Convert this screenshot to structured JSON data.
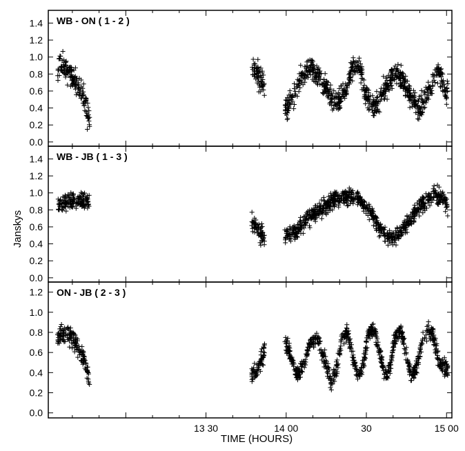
{
  "chart_data": {
    "type": "scatter",
    "marker": "+",
    "marker_color": "#000000",
    "xlabel": "TIME (HOURS)",
    "ylabel": "Janskys",
    "x_units": "minutes after 13:00",
    "xlim": [
      -29,
      122
    ],
    "xticks": [
      {
        "value": 30,
        "label": "13 30"
      },
      {
        "value": 60,
        "label": "14 00"
      },
      {
        "value": 90,
        "label": "30"
      },
      {
        "value": 120,
        "label": "15 00"
      }
    ],
    "grid": false,
    "panels": [
      {
        "title": "WB - ON ( 1 - 2 )",
        "ylim": [
          -0.05,
          1.55
        ],
        "yticks": [
          "0.0",
          "0.2",
          "0.4",
          "0.6",
          "0.8",
          "1.0",
          "1.2",
          "1.4"
        ],
        "ytick_values": [
          0.0,
          0.2,
          0.4,
          0.6,
          0.8,
          1.0,
          1.2,
          1.4
        ],
        "segments": [
          {
            "x_range": [
              -25.5,
              -13.5
            ],
            "anchors": [
              [
                -25.5,
                0.86
              ],
              [
                -23.5,
                0.92
              ],
              [
                -21.5,
                0.84
              ],
              [
                -19.5,
                0.75
              ],
              [
                -17.5,
                0.62
              ],
              [
                -15.5,
                0.5
              ],
              [
                -13.5,
                0.22
              ]
            ],
            "scatter": 0.12,
            "n": 150
          },
          {
            "x_range": [
              47,
              52
            ],
            "anchors": [
              [
                47,
                0.88
              ],
              [
                49,
                0.8
              ],
              [
                52,
                0.68
              ]
            ],
            "scatter": 0.13,
            "n": 65
          },
          {
            "x_range": [
              59.5,
              120.5
            ],
            "anchors": [
              [
                59.5,
                0.4
              ],
              [
                62,
                0.5
              ],
              [
                66,
                0.78
              ],
              [
                69,
                0.86
              ],
              [
                72,
                0.8
              ],
              [
                76,
                0.6
              ],
              [
                79,
                0.45
              ],
              [
                82,
                0.58
              ],
              [
                85,
                0.9
              ],
              [
                87,
                0.92
              ],
              [
                90,
                0.55
              ],
              [
                92,
                0.4
              ],
              [
                95,
                0.48
              ],
              [
                97,
                0.65
              ],
              [
                101,
                0.82
              ],
              [
                104,
                0.7
              ],
              [
                108,
                0.45
              ],
              [
                110,
                0.38
              ],
              [
                113,
                0.58
              ],
              [
                117,
                0.82
              ],
              [
                120,
                0.58
              ]
            ],
            "scatter": 0.12,
            "n": 760
          }
        ]
      },
      {
        "title": "WB - JB ( 1 - 3 )",
        "ylim": [
          -0.05,
          1.55
        ],
        "yticks": [
          "0.0",
          "0.2",
          "0.4",
          "0.6",
          "0.8",
          "1.0",
          "1.2",
          "1.4"
        ],
        "ytick_values": [
          0.0,
          0.2,
          0.4,
          0.6,
          0.8,
          1.0,
          1.2,
          1.4
        ],
        "segments": [
          {
            "x_range": [
              -25.5,
              -13.5
            ],
            "anchors": [
              [
                -25.5,
                0.86
              ],
              [
                -19.5,
                0.91
              ],
              [
                -13.5,
                0.9
              ]
            ],
            "scatter": 0.09,
            "n": 150
          },
          {
            "x_range": [
              47,
              52
            ],
            "anchors": [
              [
                47,
                0.68
              ],
              [
                49,
                0.58
              ],
              [
                52,
                0.45
              ]
            ],
            "scatter": 0.1,
            "n": 65
          },
          {
            "x_range": [
              59.5,
              120.5
            ],
            "anchors": [
              [
                59.5,
                0.48
              ],
              [
                63,
                0.52
              ],
              [
                68,
                0.68
              ],
              [
                73,
                0.8
              ],
              [
                78,
                0.92
              ],
              [
                83,
                0.96
              ],
              [
                87,
                0.92
              ],
              [
                91,
                0.8
              ],
              [
                94,
                0.62
              ],
              [
                97,
                0.5
              ],
              [
                100,
                0.46
              ],
              [
                103,
                0.55
              ],
              [
                107,
                0.72
              ],
              [
                111,
                0.88
              ],
              [
                115,
                0.98
              ],
              [
                119,
                0.92
              ],
              [
                120.5,
                0.8
              ]
            ],
            "scatter": 0.09,
            "n": 760
          }
        ]
      },
      {
        "title": "ON - JB ( 2 - 3 )",
        "ylim": [
          -0.05,
          1.3
        ],
        "yticks": [
          "0.0",
          "0.2",
          "0.4",
          "0.6",
          "0.8",
          "1.0",
          "1.2"
        ],
        "ytick_values": [
          0.0,
          0.2,
          0.4,
          0.6,
          0.8,
          1.0,
          1.2
        ],
        "segments": [
          {
            "x_range": [
              -25.5,
              -13.5
            ],
            "anchors": [
              [
                -25.5,
                0.76
              ],
              [
                -22,
                0.8
              ],
              [
                -19,
                0.7
              ],
              [
                -16,
                0.55
              ],
              [
                -13.5,
                0.32
              ]
            ],
            "scatter": 0.08,
            "n": 150
          },
          {
            "x_range": [
              47,
              52
            ],
            "anchors": [
              [
                47,
                0.38
              ],
              [
                49,
                0.4
              ],
              [
                52,
                0.62
              ]
            ],
            "scatter": 0.08,
            "n": 65
          },
          {
            "x_range": [
              59.5,
              120.5
            ],
            "anchors": [
              [
                59.5,
                0.74
              ],
              [
                62,
                0.55
              ],
              [
                64,
                0.36
              ],
              [
                66,
                0.46
              ],
              [
                69,
                0.7
              ],
              [
                72,
                0.75
              ],
              [
                74,
                0.55
              ],
              [
                77,
                0.3
              ],
              [
                79,
                0.45
              ],
              [
                81,
                0.75
              ],
              [
                83,
                0.8
              ],
              [
                85,
                0.55
              ],
              [
                87,
                0.35
              ],
              [
                89,
                0.5
              ],
              [
                91,
                0.8
              ],
              [
                93,
                0.82
              ],
              [
                95,
                0.6
              ],
              [
                97,
                0.35
              ],
              [
                99,
                0.48
              ],
              [
                101,
                0.78
              ],
              [
                103,
                0.82
              ],
              [
                105,
                0.55
              ],
              [
                107,
                0.35
              ],
              [
                109,
                0.48
              ],
              [
                111,
                0.72
              ],
              [
                113,
                0.82
              ],
              [
                115,
                0.78
              ],
              [
                117,
                0.52
              ],
              [
                120.5,
                0.42
              ]
            ],
            "scatter": 0.07,
            "n": 760
          }
        ]
      }
    ]
  }
}
